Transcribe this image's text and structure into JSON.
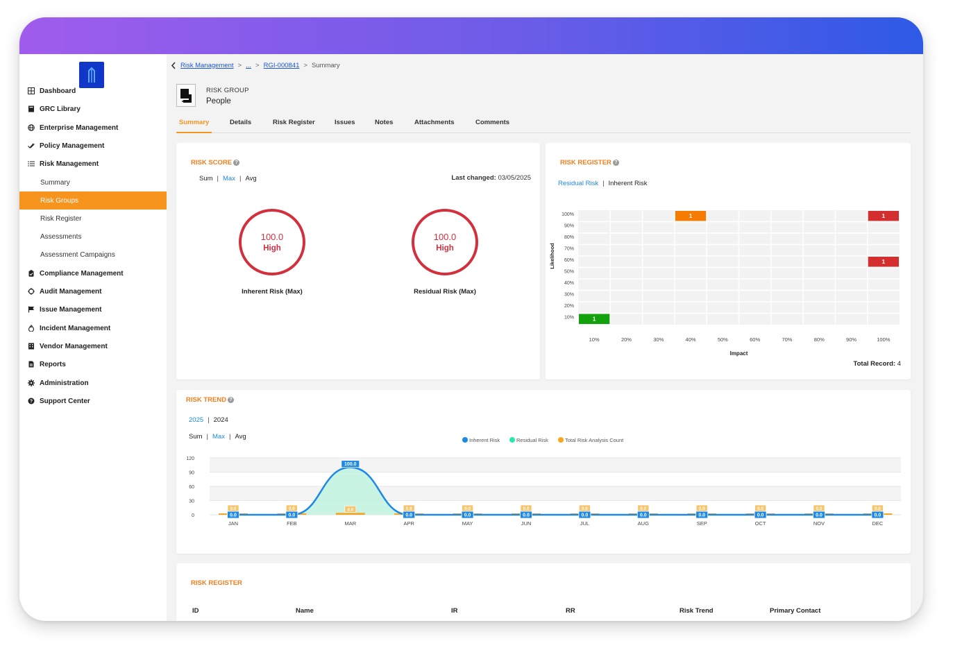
{
  "sidebar": {
    "items": [
      {
        "label": "Dashboard",
        "icon": "grid-icon"
      },
      {
        "label": "GRC Library",
        "icon": "book-icon"
      },
      {
        "label": "Enterprise Management",
        "icon": "globe-icon"
      },
      {
        "label": "Policy Management",
        "icon": "check-double-icon"
      },
      {
        "label": "Risk Management",
        "icon": "list-icon"
      },
      {
        "label": "Summary"
      },
      {
        "label": "Risk Groups"
      },
      {
        "label": "Risk Register"
      },
      {
        "label": "Assessments"
      },
      {
        "label": "Assessment Campaigns"
      },
      {
        "label": "Compliance Management",
        "icon": "clipboard-icon"
      },
      {
        "label": "Audit Management",
        "icon": "crosshair-icon"
      },
      {
        "label": "Issue Management",
        "icon": "flag-icon"
      },
      {
        "label": "Incident Management",
        "icon": "fire-icon"
      },
      {
        "label": "Vendor Management",
        "icon": "building-icon"
      },
      {
        "label": "Reports",
        "icon": "document-icon"
      },
      {
        "label": "Administration",
        "icon": "gear-icon"
      },
      {
        "label": "Support Center",
        "icon": "help-icon"
      }
    ],
    "active_color": "#f7941d"
  },
  "breadcrumb": {
    "root": "Risk Management",
    "ellipsis": "...",
    "record": "RGI-000841",
    "current": "Summary"
  },
  "header": {
    "type": "RISK GROUP",
    "name": "People"
  },
  "tabs": [
    "Summary",
    "Details",
    "Risk Register",
    "Issues",
    "Notes",
    "Attachments",
    "Comments"
  ],
  "risk_score": {
    "title": "RISK SCORE",
    "agg": [
      "Sum",
      "Max",
      "Avg"
    ],
    "last_changed_label": "Last changed:",
    "last_changed": "03/05/2025",
    "inherent": {
      "value": "100.0",
      "level": "High",
      "label": "Inherent Risk (Max)"
    },
    "residual": {
      "value": "100.0",
      "level": "High",
      "label": "Residual Risk (Max)"
    }
  },
  "risk_register_matrix": {
    "title": "RISK REGISTER",
    "toggle": [
      "Residual Risk",
      "Inherent Risk"
    ],
    "y_axis_label": "Likelihood",
    "x_axis_label": "Impact",
    "y_ticks": [
      "100%",
      "90%",
      "80%",
      "70%",
      "60%",
      "50%",
      "40%",
      "30%",
      "20%",
      "10%"
    ],
    "x_ticks": [
      "10%",
      "20%",
      "30%",
      "40%",
      "50%",
      "60%",
      "70%",
      "80%",
      "90%",
      "100%"
    ],
    "cells": [
      {
        "impact": "40%",
        "likelihood": "100%",
        "count": "1",
        "color": "#f57c00"
      },
      {
        "impact": "100%",
        "likelihood": "100%",
        "count": "1",
        "color": "#d32f2f"
      },
      {
        "impact": "100%",
        "likelihood": "60%",
        "count": "1",
        "color": "#d32f2f"
      },
      {
        "impact": "10%",
        "likelihood": "10%",
        "count": "1",
        "color": "#13a10e"
      }
    ],
    "total_label": "Total Record:",
    "total": "4"
  },
  "risk_trend": {
    "title": "RISK TREND",
    "years": [
      "2025",
      "2024"
    ],
    "agg": [
      "Sum",
      "Max",
      "Avg"
    ],
    "legend": [
      {
        "name": "Inherent Risk",
        "color": "#1e88e5"
      },
      {
        "name": "Residual Risk",
        "color": "#2ee6b0"
      },
      {
        "name": "Total Risk Analysis Count",
        "color": "#f5a623"
      }
    ]
  },
  "chart_data": {
    "type": "area",
    "categories": [
      "JAN",
      "FEB",
      "MAR",
      "APR",
      "MAY",
      "JUN",
      "JUL",
      "AUG",
      "SEP",
      "OCT",
      "NOV",
      "DEC"
    ],
    "series": [
      {
        "name": "Inherent Risk",
        "values": [
          0,
          0,
          100,
          0,
          0,
          0,
          0,
          0,
          0,
          0,
          0,
          0
        ],
        "labels": [
          "0.0",
          "0.0",
          "100.0",
          "0.0",
          "0.0",
          "0.0",
          "0.0",
          "0.0",
          "0.0",
          "0.0",
          "0.0",
          "0.0"
        ]
      },
      {
        "name": "Residual Risk",
        "values": [
          0,
          0,
          100,
          0,
          0,
          0,
          0,
          0,
          0,
          0,
          0,
          0
        ]
      },
      {
        "name": "Total Risk Analysis Count",
        "values": [
          0,
          0,
          4,
          0,
          0,
          0,
          0,
          0,
          0,
          0,
          0,
          0
        ],
        "labels": [
          "0.0",
          "0.0",
          "4.0",
          "0.0",
          "0.0",
          "0.0",
          "0.0",
          "0.0",
          "0.0",
          "0.0",
          "0.0",
          "0.0"
        ]
      }
    ],
    "y_ticks": [
      "120",
      "90",
      "60",
      "30",
      "0"
    ],
    "ylim": [
      0,
      120
    ],
    "grid": true,
    "legend_position": "top-center"
  },
  "risk_register_table": {
    "title": "RISK REGISTER",
    "columns": [
      "ID",
      "Name",
      "IR",
      "RR",
      "Risk Trend",
      "Primary Contact"
    ]
  }
}
